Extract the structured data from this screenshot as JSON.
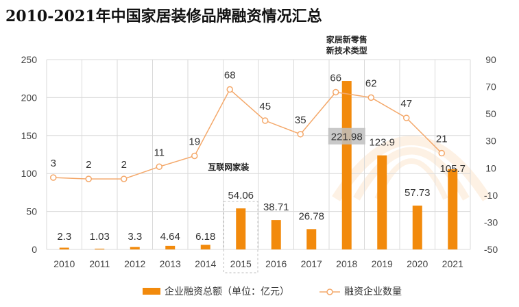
{
  "chart_data": {
    "type": "bar+line",
    "title": "2010-2021年中国家居装修品牌融资情况汇总",
    "categories": [
      "2010",
      "2011",
      "2012",
      "2013",
      "2014",
      "2015",
      "2016",
      "2017",
      "2018",
      "2019",
      "2020",
      "2021"
    ],
    "series": [
      {
        "name": "企业融资总额（单位：亿元）",
        "type": "bar",
        "axis": "left",
        "color": "#f28a0c",
        "values": [
          2.3,
          1.03,
          3.3,
          4.64,
          6.18,
          54.06,
          38.71,
          26.78,
          221.98,
          123.9,
          57.73,
          105.7
        ]
      },
      {
        "name": "融资企业数量",
        "type": "line",
        "axis": "right",
        "color": "#f4a86a",
        "values": [
          3,
          2,
          2,
          11,
          19,
          68,
          45,
          35,
          66,
          62,
          47,
          21
        ]
      }
    ],
    "left_axis": {
      "ylim": [
        0,
        250
      ],
      "ticks": [
        "0",
        "50",
        "100",
        "150",
        "200",
        "250"
      ]
    },
    "right_axis": {
      "ylim": [
        -50,
        90
      ],
      "ticks": [
        "-50",
        "-30",
        "-10",
        "10",
        "30",
        "50",
        "70",
        "90"
      ]
    },
    "grid": true,
    "legend_position": "bottom",
    "annotations": [
      {
        "text": "互联网家装",
        "category": "2015"
      },
      {
        "text_lines": [
          "家居新零售",
          "新技术类型"
        ],
        "category": "2018"
      }
    ]
  }
}
